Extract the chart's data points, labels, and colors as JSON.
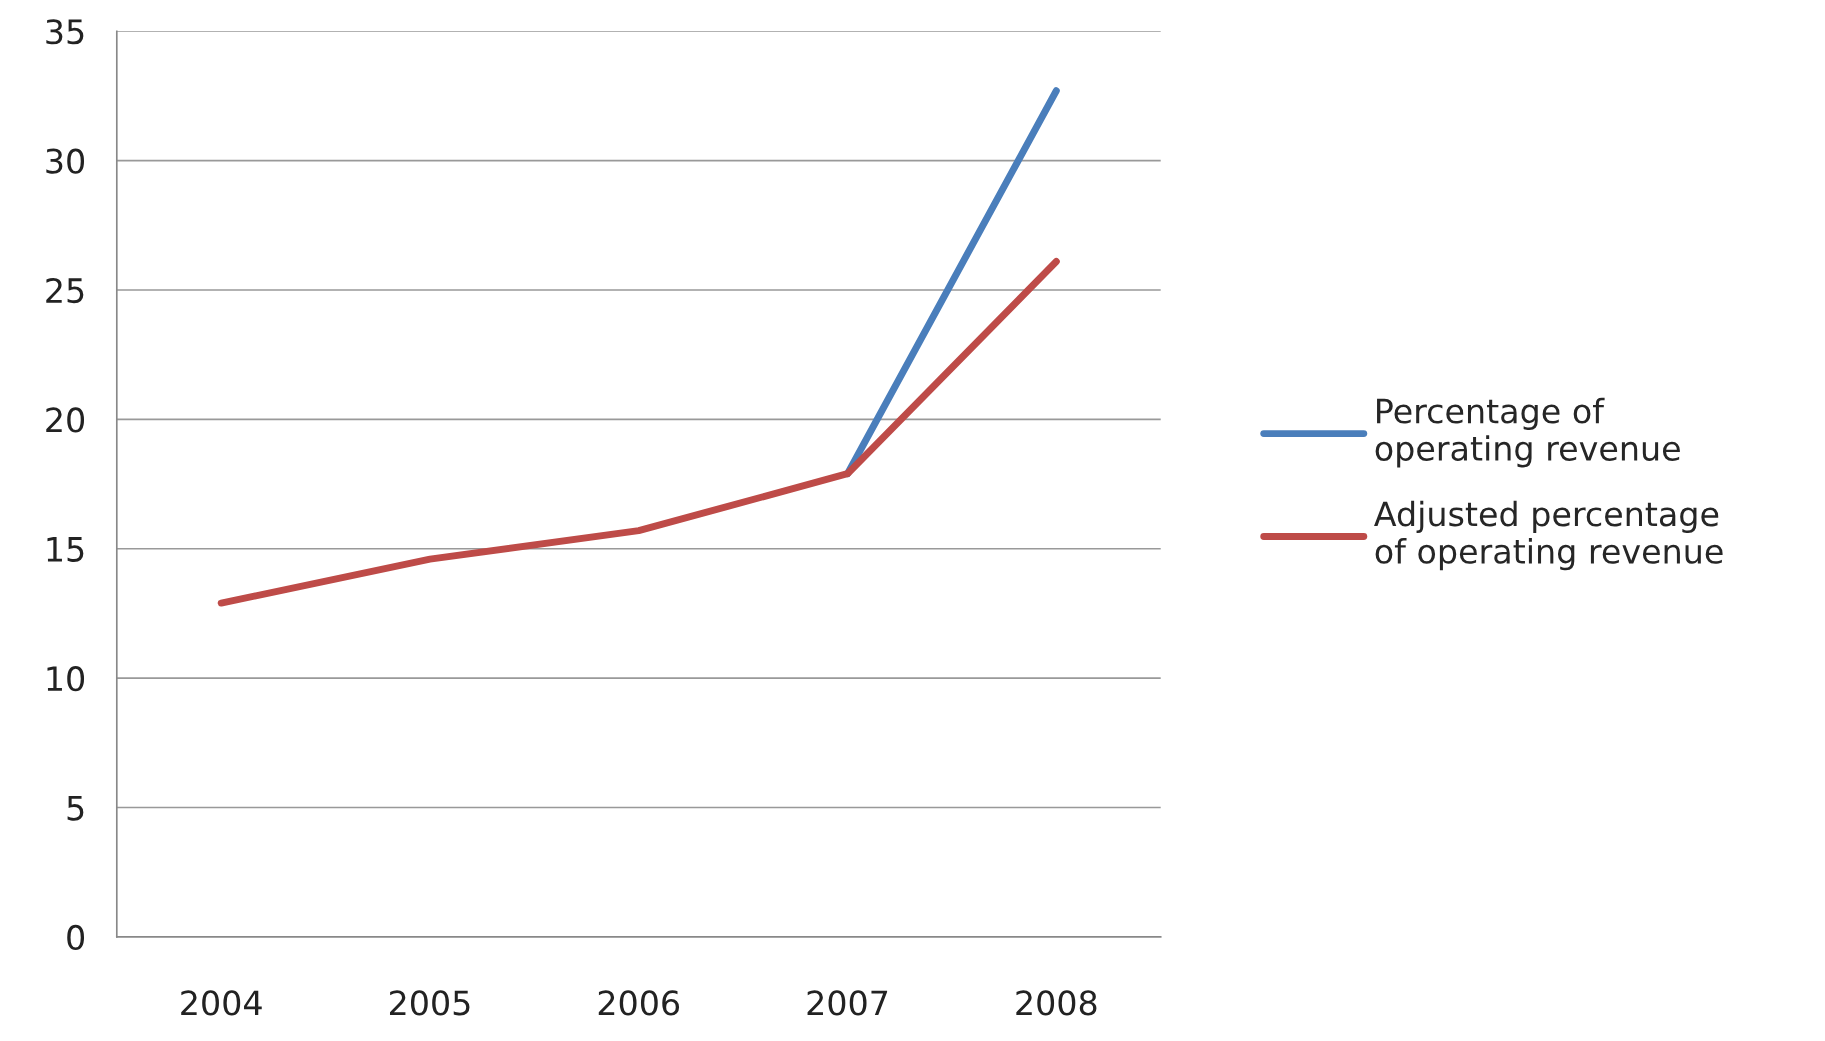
{
  "chart_data": {
    "type": "line",
    "categories": [
      "2004",
      "2005",
      "2006",
      "2007",
      "2008"
    ],
    "series": [
      {
        "name": "Percentage of operating revenue",
        "color": "#4a7ebb",
        "values": [
          null,
          null,
          null,
          17.9,
          32.7
        ]
      },
      {
        "name": "Adjusted percentage of operating revenue",
        "color": "#be4b48",
        "values": [
          12.9,
          14.6,
          15.7,
          17.9,
          26.1
        ]
      }
    ],
    "ylim": [
      0,
      35
    ],
    "yticks": [
      0,
      5,
      10,
      15,
      20,
      25,
      30,
      35
    ],
    "grid": "y",
    "legend": "right",
    "marker": "none",
    "line_style": "solid"
  }
}
